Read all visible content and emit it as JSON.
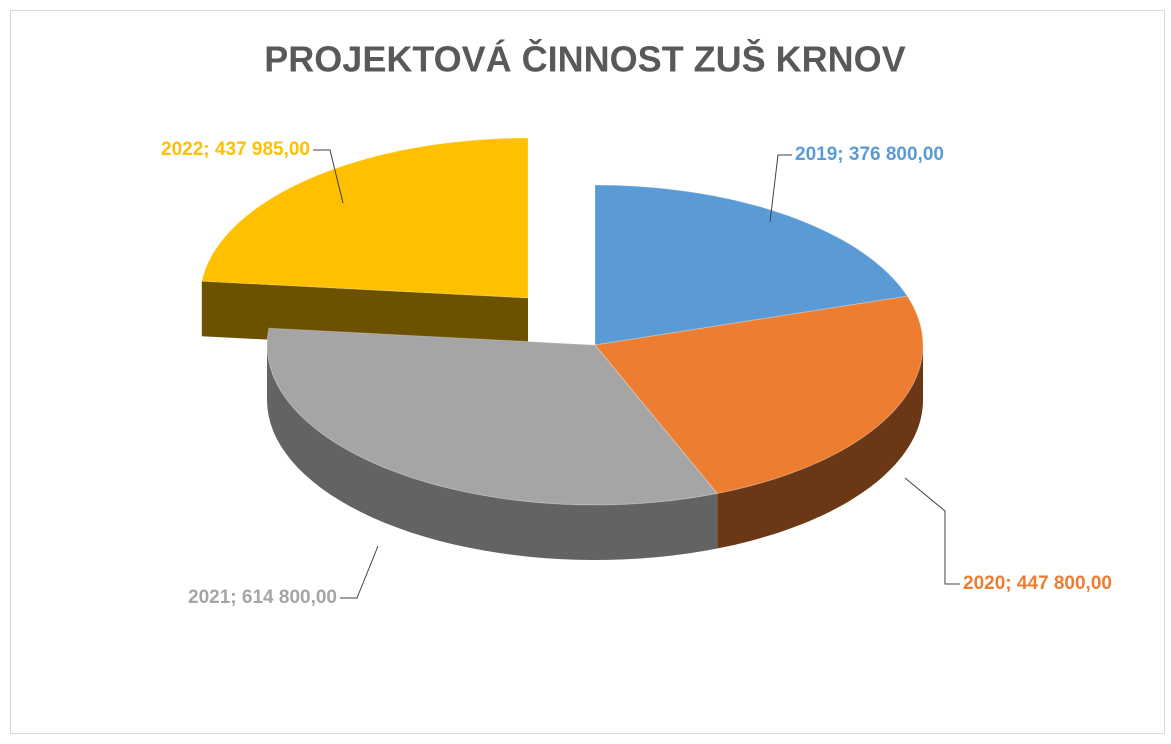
{
  "chart_data": {
    "type": "pie3d",
    "title": "PROJEKTOVÁ ČINNOST ZUŠ KRNOV",
    "values": [
      376800,
      447800,
      614800,
      437985
    ],
    "value_labels": [
      "2019; 376 800,00",
      "2020; 447 800,00",
      "2021; 614 800,00",
      "2022; 437 985,00"
    ],
    "colors": [
      "#5b9bd5",
      "#ed7d31",
      "#a5a5a5",
      "#ffc000"
    ],
    "exploded": [
      false,
      false,
      false,
      true
    ]
  }
}
